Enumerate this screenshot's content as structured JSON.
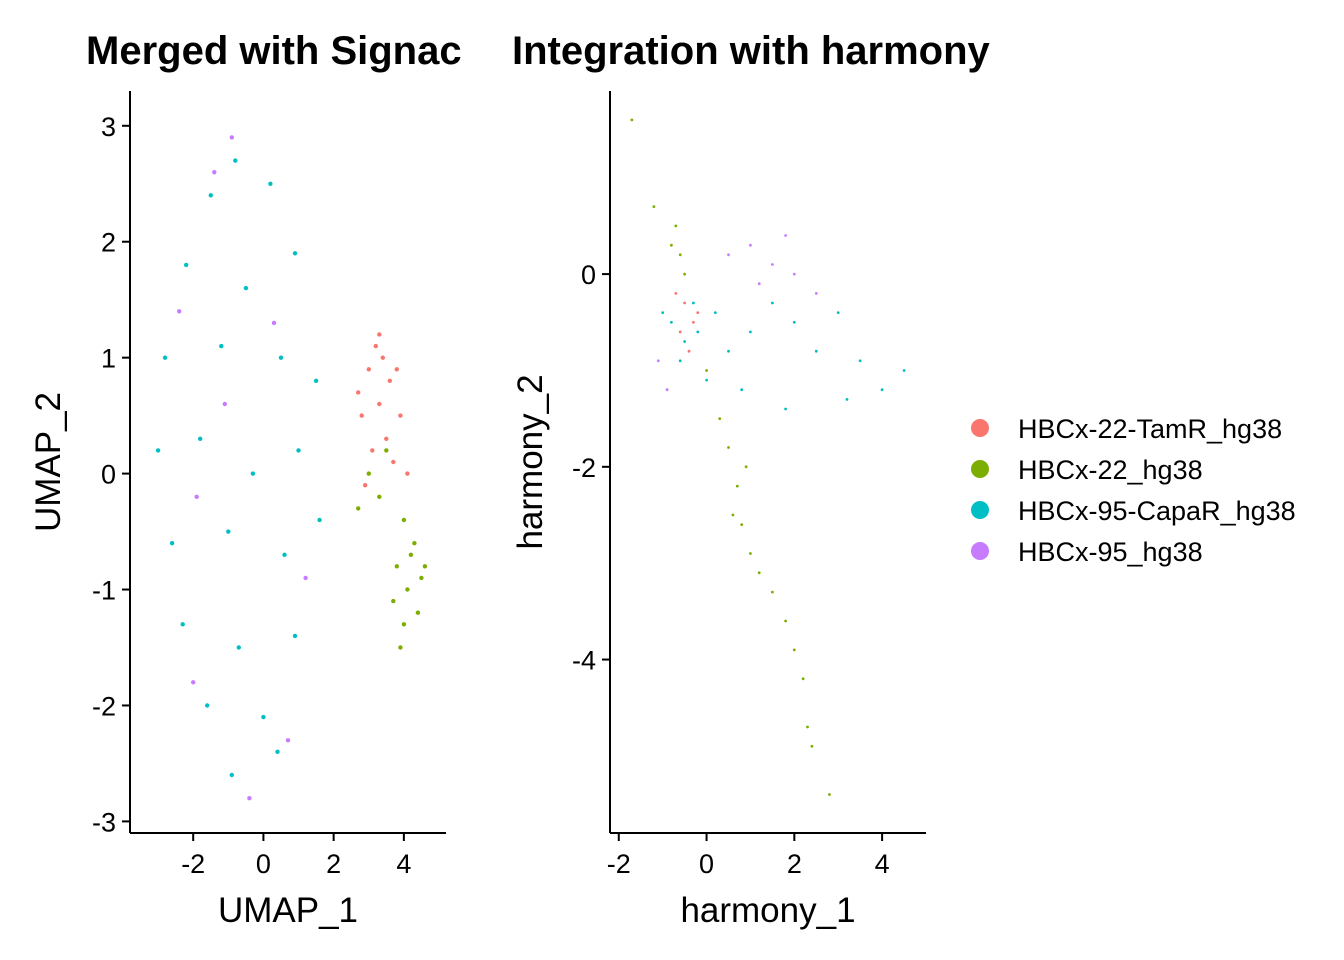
{
  "legend": {
    "items": [
      {
        "label": "HBCx-22-TamR_hg38",
        "color": "#F8766D"
      },
      {
        "label": "HBCx-22_hg38",
        "color": "#7CAE00"
      },
      {
        "label": "HBCx-95-CapaR_hg38",
        "color": "#00BFC4"
      },
      {
        "label": "HBCx-95_hg38",
        "color": "#C77CFF"
      }
    ]
  },
  "chart_data": [
    {
      "type": "scatter",
      "title": "Merged with Signac",
      "xlabel": "UMAP_1",
      "ylabel": "UMAP_2",
      "xlim": [
        -3.8,
        5.2
      ],
      "ylim": [
        -3.1,
        3.3
      ],
      "xticks": [
        -2,
        0,
        2,
        4
      ],
      "yticks": [
        -3,
        -2,
        -1,
        0,
        1,
        2,
        3
      ],
      "xtick_labels": [
        "-2",
        "0",
        "2",
        "4"
      ],
      "ytick_labels": [
        "-3",
        "-2",
        "-1",
        "0",
        "1",
        "2",
        "3"
      ],
      "grid": false,
      "series": [
        {
          "name": "HBCx-22-TamR_hg38",
          "color": "#F8766D",
          "points": [
            [
              3.2,
              1.1
            ],
            [
              3.4,
              1.0
            ],
            [
              3.0,
              0.9
            ],
            [
              3.6,
              0.8
            ],
            [
              3.3,
              0.6
            ],
            [
              2.8,
              0.5
            ],
            [
              3.9,
              0.5
            ],
            [
              3.5,
              0.3
            ],
            [
              3.1,
              0.2
            ],
            [
              3.7,
              0.1
            ],
            [
              2.9,
              -0.1
            ],
            [
              4.1,
              0.0
            ],
            [
              3.3,
              1.2
            ],
            [
              3.8,
              0.9
            ],
            [
              2.7,
              0.7
            ]
          ]
        },
        {
          "name": "HBCx-22_hg38",
          "color": "#7CAE00",
          "points": [
            [
              4.0,
              -0.4
            ],
            [
              4.3,
              -0.6
            ],
            [
              3.8,
              -0.8
            ],
            [
              4.5,
              -0.9
            ],
            [
              4.1,
              -1.0
            ],
            [
              3.7,
              -1.1
            ],
            [
              4.4,
              -1.2
            ],
            [
              4.0,
              -1.3
            ],
            [
              3.9,
              -1.5
            ],
            [
              4.2,
              -0.7
            ],
            [
              3.5,
              0.2
            ],
            [
              3.0,
              0.0
            ],
            [
              2.7,
              -0.3
            ],
            [
              3.3,
              -0.2
            ],
            [
              4.6,
              -0.8
            ]
          ]
        },
        {
          "name": "HBCx-95-CapaR_hg38",
          "color": "#00BFC4",
          "points": [
            [
              -1.5,
              2.4
            ],
            [
              -0.8,
              2.7
            ],
            [
              0.2,
              2.5
            ],
            [
              -2.2,
              1.8
            ],
            [
              -0.5,
              1.6
            ],
            [
              0.9,
              1.9
            ],
            [
              -2.8,
              1.0
            ],
            [
              -1.2,
              1.1
            ],
            [
              0.5,
              1.0
            ],
            [
              1.5,
              0.8
            ],
            [
              -3.0,
              0.2
            ],
            [
              -1.8,
              0.3
            ],
            [
              -0.3,
              0.0
            ],
            [
              1.0,
              0.2
            ],
            [
              -2.6,
              -0.6
            ],
            [
              -1.0,
              -0.5
            ],
            [
              0.6,
              -0.7
            ],
            [
              1.6,
              -0.4
            ],
            [
              -2.3,
              -1.3
            ],
            [
              -0.7,
              -1.5
            ],
            [
              0.9,
              -1.4
            ],
            [
              -1.6,
              -2.0
            ],
            [
              0.0,
              -2.1
            ],
            [
              -0.9,
              -2.6
            ],
            [
              0.4,
              -2.4
            ]
          ]
        },
        {
          "name": "HBCx-95_hg38",
          "color": "#C77CFF",
          "points": [
            [
              -0.9,
              2.9
            ],
            [
              -1.4,
              2.6
            ],
            [
              -2.4,
              1.4
            ],
            [
              0.3,
              1.3
            ],
            [
              -1.9,
              -0.2
            ],
            [
              1.2,
              -0.9
            ],
            [
              -2.0,
              -1.8
            ],
            [
              -0.4,
              -2.8
            ],
            [
              0.7,
              -2.3
            ],
            [
              -1.1,
              0.6
            ]
          ]
        }
      ]
    },
    {
      "type": "scatter",
      "title": "Integration with harmony",
      "xlabel": "harmony_1",
      "ylabel": "harmony_2",
      "xlim": [
        -2.2,
        5.0
      ],
      "ylim": [
        -5.8,
        1.9
      ],
      "xticks": [
        -2,
        0,
        2,
        4
      ],
      "yticks": [
        -4,
        -2,
        0
      ],
      "xtick_labels": [
        "-2",
        "0",
        "2",
        "4"
      ],
      "ytick_labels": [
        "-4",
        "-2",
        "0"
      ],
      "grid": false,
      "series": [
        {
          "name": "HBCx-22-TamR_hg38",
          "color": "#F8766D",
          "points": [
            [
              -0.5,
              -0.3
            ],
            [
              -0.3,
              -0.5
            ],
            [
              -0.6,
              -0.6
            ],
            [
              -0.4,
              -0.8
            ],
            [
              -0.2,
              -0.4
            ],
            [
              -0.7,
              -0.2
            ]
          ]
        },
        {
          "name": "HBCx-22_hg38",
          "color": "#7CAE00",
          "points": [
            [
              -1.7,
              1.6
            ],
            [
              -1.2,
              0.7
            ],
            [
              -0.7,
              0.5
            ],
            [
              -0.8,
              0.3
            ],
            [
              -0.5,
              0.0
            ],
            [
              -0.6,
              0.2
            ],
            [
              0.0,
              -1.0
            ],
            [
              0.3,
              -1.5
            ],
            [
              0.5,
              -1.8
            ],
            [
              0.7,
              -2.2
            ],
            [
              0.8,
              -2.6
            ],
            [
              1.0,
              -2.9
            ],
            [
              1.2,
              -3.1
            ],
            [
              1.5,
              -3.3
            ],
            [
              1.8,
              -3.6
            ],
            [
              2.0,
              -3.9
            ],
            [
              2.2,
              -4.2
            ],
            [
              2.3,
              -4.7
            ],
            [
              2.4,
              -4.9
            ],
            [
              2.8,
              -5.4
            ],
            [
              0.9,
              -2.0
            ],
            [
              0.6,
              -2.5
            ]
          ]
        },
        {
          "name": "HBCx-95-CapaR_hg38",
          "color": "#00BFC4",
          "points": [
            [
              -0.8,
              -0.5
            ],
            [
              -0.5,
              -0.7
            ],
            [
              -0.3,
              -0.3
            ],
            [
              -0.6,
              -0.9
            ],
            [
              -0.2,
              -0.6
            ],
            [
              0.2,
              -0.4
            ],
            [
              0.5,
              -0.8
            ],
            [
              1.0,
              -0.6
            ],
            [
              1.5,
              -0.3
            ],
            [
              2.0,
              -0.5
            ],
            [
              2.5,
              -0.8
            ],
            [
              3.0,
              -0.4
            ],
            [
              3.5,
              -0.9
            ],
            [
              4.0,
              -1.2
            ],
            [
              4.5,
              -1.0
            ],
            [
              0.8,
              -1.2
            ],
            [
              1.8,
              -1.4
            ],
            [
              3.2,
              -1.3
            ],
            [
              -1.0,
              -0.4
            ],
            [
              0.0,
              -1.1
            ]
          ]
        },
        {
          "name": "HBCx-95_hg38",
          "color": "#C77CFF",
          "points": [
            [
              0.5,
              0.2
            ],
            [
              1.0,
              0.3
            ],
            [
              1.5,
              0.1
            ],
            [
              2.0,
              0.0
            ],
            [
              2.5,
              -0.2
            ],
            [
              1.2,
              -0.1
            ],
            [
              -0.9,
              -1.2
            ],
            [
              -1.1,
              -0.9
            ],
            [
              1.8,
              0.4
            ]
          ]
        }
      ]
    }
  ]
}
